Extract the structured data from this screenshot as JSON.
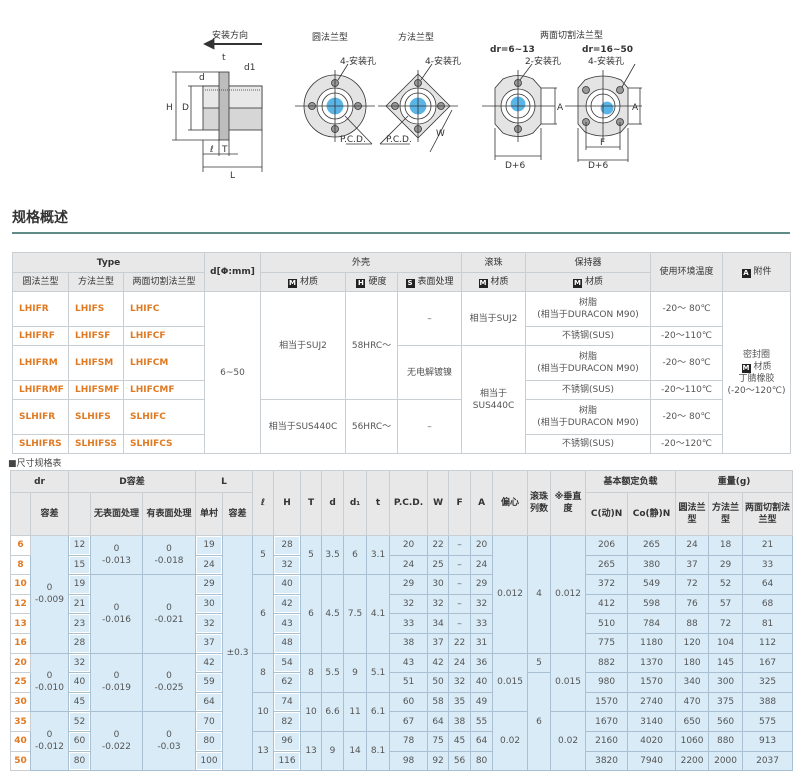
{
  "diagram": {
    "install_direction": "安装方向",
    "round_flange": "圆法兰型",
    "square_flange": "方法兰型",
    "cut_flange": "两面切割法兰型",
    "dr_small": "dr=6~13",
    "dr_large": "dr=16~50",
    "holes4": "4-安装孔",
    "holes2": "2-安装孔",
    "pcd": "P.C.D.",
    "w": "W",
    "a": "A",
    "f": "F",
    "d6": "D+6",
    "h": "H",
    "d_outer": "D",
    "d": "d",
    "t": "t",
    "d1": "d1",
    "l_small": "ℓ",
    "t_big": "T",
    "l_big": "L",
    "bore_color": "#5ab4e6"
  },
  "section_title": "规格概述",
  "overview": {
    "h_type": "Type",
    "h_round": "圆法兰型",
    "h_square": "方法兰型",
    "h_cut": "两面切割法兰型",
    "h_d": "d[Φ:mm]",
    "h_shell": "外壳",
    "h_ball": "滚珠",
    "h_retainer": "保持器",
    "h_temp": "使用环境温度",
    "h_accessory": "附件",
    "h_material": "材质",
    "h_hardness": "硬度",
    "h_surface": "表面处理",
    "icon_m": "M",
    "icon_h": "H",
    "icon_s": "S",
    "icon_a": "A",
    "types": [
      [
        "LHIFR",
        "LHIFS",
        "LHIFC"
      ],
      [
        "LHIFRF",
        "LHIFSF",
        "LHIFCF"
      ],
      [
        "LHIFRM",
        "LHIFSM",
        "LHIFCM"
      ],
      [
        "LHIFRMF",
        "LHIFSMF",
        "LHIFCMF"
      ],
      [
        "SLHIFR",
        "SLHIFS",
        "SLHIFC"
      ],
      [
        "SLHIFRS",
        "SLHIFSS",
        "SLHIFCS"
      ]
    ],
    "d_range": "6~50",
    "shell_mat_1": "相当于SUJ2",
    "shell_mat_2": "相当于SUS440C",
    "hard_1": "58HRC～",
    "hard_2": "56HRC～",
    "surf_1": "–",
    "surf_2": "无电解镀镍",
    "surf_3": "–",
    "ball_1": "相当于SUJ2",
    "ball_2": "相当于SUS440C",
    "ret_resin": "树脂",
    "ret_resin_sub": "(相当于DURACON M90)",
    "ret_sus": "不锈钢(SUS)",
    "temps": [
      "-20～ 80℃",
      "-20～110℃",
      "-20～ 80℃",
      "-20～110℃",
      "-20～ 80℃",
      "-20～120℃"
    ],
    "acc_1": "密封圈",
    "acc_2": "材质",
    "acc_3": "丁腈橡胶",
    "acc_4": "(-20～120℃)",
    "accent_color": "#e07a22"
  },
  "dims": {
    "caption": "■尺寸规格表",
    "h_dr": "dr",
    "h_tol": "容差",
    "h_Dtol": "D容差",
    "h_nosurf": "无表面处理",
    "h_surf": "有表面处理",
    "h_L": "L",
    "h_single": "单村",
    "h_l": "ℓ",
    "h_H": "H",
    "h_T": "T",
    "h_d": "d",
    "h_d1": "d₁",
    "h_t": "t",
    "h_pcd": "P.C.D.",
    "h_W": "W",
    "h_F": "F",
    "h_A": "A",
    "h_ecc": "偏心",
    "h_rows": "滚珠列数",
    "h_perp": "※垂直度",
    "h_load": "基本额定负载",
    "h_C": "C(动)N",
    "h_Co": "Co(静)N",
    "h_weight": "重量(g)",
    "h_wr": "圆法兰型",
    "h_ws": "方法兰型",
    "h_wc": "两面切割法兰型",
    "dr_tol": [
      [
        "0",
        "-0.009"
      ],
      [
        "0",
        "-0.010"
      ],
      [
        "0",
        "-0.012"
      ]
    ],
    "nosurf": [
      [
        "0",
        "-0.013"
      ],
      [
        "0",
        "-0.016"
      ],
      [
        "0",
        "-0.019"
      ],
      [
        "0",
        "-0.022"
      ]
    ],
    "surf": [
      [
        "0",
        "-0.018"
      ],
      [
        "0",
        "-0.021"
      ],
      [
        "0",
        "-0.025"
      ],
      [
        "0",
        "-0.03"
      ]
    ],
    "L_tol": "±0.3",
    "groups": [
      {
        "l": "5",
        "T": "5",
        "d": "3.5",
        "d1": "6",
        "t": "3.1"
      },
      {
        "l": "6",
        "T": "6",
        "d": "4.5",
        "d1": "7.5",
        "t": "4.1"
      },
      {
        "l": "8",
        "T": "8",
        "d": "5.5",
        "d1": "9",
        "t": "5.1"
      },
      {
        "l": "10",
        "T": "10",
        "d": "6.6",
        "d1": "11",
        "t": "6.1"
      },
      {
        "l": "13",
        "T": "13",
        "d": "9",
        "d1": "14",
        "t": "8.1"
      }
    ],
    "ecc": [
      "0.012",
      "0.015",
      "0.02"
    ],
    "ball_rows": [
      "4",
      "5",
      "6"
    ],
    "perp": [
      "0.012",
      "0.015",
      "0.02"
    ],
    "rows": [
      [
        "6",
        "12",
        "19",
        "28",
        "20",
        "22",
        "–",
        "20",
        "206",
        "265",
        "24",
        "18",
        "21"
      ],
      [
        "8",
        "15",
        "24",
        "32",
        "24",
        "25",
        "–",
        "24",
        "265",
        "380",
        "37",
        "29",
        "33"
      ],
      [
        "10",
        "19",
        "29",
        "40",
        "29",
        "30",
        "–",
        "29",
        "372",
        "549",
        "72",
        "52",
        "64"
      ],
      [
        "12",
        "21",
        "30",
        "42",
        "32",
        "32",
        "–",
        "32",
        "412",
        "598",
        "76",
        "57",
        "68"
      ],
      [
        "13",
        "23",
        "32",
        "43",
        "33",
        "34",
        "–",
        "33",
        "510",
        "784",
        "88",
        "72",
        "81"
      ],
      [
        "16",
        "28",
        "37",
        "48",
        "38",
        "37",
        "22",
        "31",
        "775",
        "1180",
        "120",
        "104",
        "112"
      ],
      [
        "20",
        "32",
        "42",
        "54",
        "43",
        "42",
        "24",
        "36",
        "882",
        "1370",
        "180",
        "145",
        "167"
      ],
      [
        "25",
        "40",
        "59",
        "62",
        "51",
        "50",
        "32",
        "40",
        "980",
        "1570",
        "340",
        "300",
        "325"
      ],
      [
        "30",
        "45",
        "64",
        "74",
        "60",
        "58",
        "35",
        "49",
        "1570",
        "2740",
        "470",
        "375",
        "388"
      ],
      [
        "35",
        "52",
        "70",
        "82",
        "67",
        "64",
        "38",
        "55",
        "1670",
        "3140",
        "650",
        "560",
        "575"
      ],
      [
        "40",
        "60",
        "80",
        "96",
        "78",
        "75",
        "45",
        "64",
        "2160",
        "4020",
        "1060",
        "880",
        "913"
      ],
      [
        "50",
        "80",
        "100",
        "116",
        "98",
        "92",
        "56",
        "80",
        "3820",
        "7940",
        "2200",
        "2000",
        "2037"
      ]
    ],
    "row_color": "#d8ebf7"
  }
}
